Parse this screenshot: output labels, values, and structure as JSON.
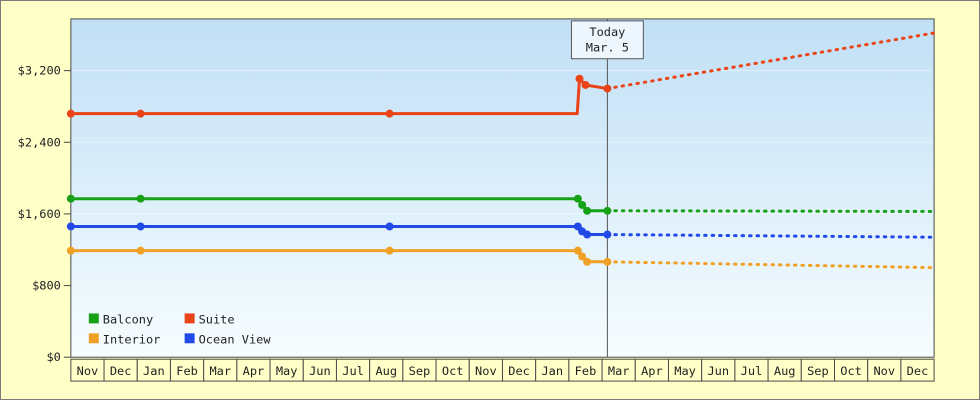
{
  "chart_data": {
    "type": "line",
    "title": "",
    "legend_position": "bottom-left",
    "y_axis": {
      "min": 0,
      "max": 3800,
      "ticks": [
        {
          "value": 0,
          "label": "$0"
        },
        {
          "value": 800,
          "label": "$800"
        },
        {
          "value": 1600,
          "label": "$1,600"
        },
        {
          "value": 2400,
          "label": "$2,400"
        },
        {
          "value": 3200,
          "label": "$3,200"
        }
      ]
    },
    "x_axis": {
      "months": [
        "Nov",
        "Dec",
        "Jan",
        "Feb",
        "Mar",
        "Apr",
        "May",
        "Jun",
        "Jul",
        "Aug",
        "Sep",
        "Oct",
        "Nov",
        "Dec",
        "Jan",
        "Feb",
        "Mar",
        "Apr",
        "May",
        "Jun",
        "Jul",
        "Aug",
        "Sep",
        "Oct",
        "Nov",
        "Dec"
      ]
    },
    "today_marker": {
      "line1": "Today",
      "line2": "Mar. 5",
      "month_index": 16.16
    },
    "series": [
      {
        "name": "Balcony",
        "color": "#17a117",
        "history": {
          "x": [
            0,
            2.1,
            15.27,
            15.4,
            15.55,
            16.16
          ],
          "y": [
            1770,
            1770,
            1770,
            1700,
            1635,
            1635
          ],
          "dots": [
            1,
            1,
            1,
            1,
            1,
            1
          ]
        },
        "forecast": {
          "x": [
            16.16,
            26
          ],
          "y": [
            1635,
            1628
          ]
        }
      },
      {
        "name": "Suite",
        "color": "#eb4318",
        "history": {
          "x": [
            0,
            2.1,
            9.6,
            15.25,
            15.32,
            15.5,
            16.16
          ],
          "y": [
            2720,
            2720,
            2720,
            2720,
            3110,
            3040,
            3000
          ],
          "dots": [
            1,
            1,
            1,
            0,
            1,
            1,
            1
          ]
        },
        "forecast": {
          "x": [
            16.16,
            26
          ],
          "y": [
            3000,
            3620
          ]
        }
      },
      {
        "name": "Interior",
        "color": "#f0a125",
        "history": {
          "x": [
            0,
            2.1,
            9.6,
            15.27,
            15.4,
            15.55,
            16.16
          ],
          "y": [
            1190,
            1190,
            1190,
            1190,
            1125,
            1065,
            1065
          ],
          "dots": [
            1,
            1,
            1,
            1,
            1,
            1,
            1
          ]
        },
        "forecast": {
          "x": [
            16.16,
            26
          ],
          "y": [
            1065,
            1000
          ]
        }
      },
      {
        "name": "Ocean View",
        "color": "#2149e8",
        "history": {
          "x": [
            0,
            2.1,
            9.6,
            15.27,
            15.4,
            15.55,
            16.16
          ],
          "y": [
            1460,
            1460,
            1460,
            1460,
            1405,
            1370,
            1370
          ],
          "dots": [
            1,
            1,
            1,
            1,
            1,
            1,
            1
          ]
        },
        "forecast": {
          "x": [
            16.16,
            26
          ],
          "y": [
            1370,
            1340
          ]
        }
      }
    ],
    "legend": [
      {
        "label": "Balcony",
        "color": "#17a117"
      },
      {
        "label": "Suite",
        "color": "#eb4318"
      },
      {
        "label": "Interior",
        "color": "#f0a125"
      },
      {
        "label": "Ocean View",
        "color": "#2149e8"
      }
    ]
  }
}
